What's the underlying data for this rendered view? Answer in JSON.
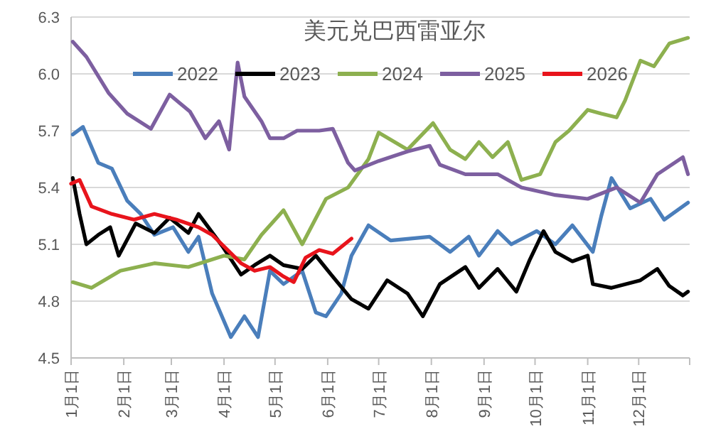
{
  "chart_data": {
    "type": "line",
    "title": "美元兑巴西雷亚尔",
    "legend": "top",
    "grid": "y",
    "marker": "none",
    "line_style": "solid",
    "xlim": [
      "--01-01",
      "--12-31"
    ],
    "xticks": [
      {
        "value": "--01-01",
        "label": "1月1日"
      },
      {
        "value": "--02-01",
        "label": "2月1日"
      },
      {
        "value": "--03-01",
        "label": "3月1日"
      },
      {
        "value": "--04-01",
        "label": "4月1日"
      },
      {
        "value": "--05-01",
        "label": "5月1日"
      },
      {
        "value": "--06-01",
        "label": "6月1日"
      },
      {
        "value": "--07-01",
        "label": "7月1日"
      },
      {
        "value": "--08-01",
        "label": "8月1日"
      },
      {
        "value": "--09-01",
        "label": "9月1日"
      },
      {
        "value": "--10-01",
        "label": "10月1日"
      },
      {
        "value": "--11-01",
        "label": "11月1日"
      },
      {
        "value": "--12-01",
        "label": "12月1日"
      }
    ],
    "ylim": [
      4.5,
      6.3
    ],
    "yticks": [
      {
        "value": 4.5,
        "label": "4.5"
      },
      {
        "value": 4.8,
        "label": "4.8"
      },
      {
        "value": 5.1,
        "label": "5.1"
      },
      {
        "value": 5.4,
        "label": "5.4"
      },
      {
        "value": 5.7,
        "label": "5.7"
      },
      {
        "value": 6.0,
        "label": "6.0"
      },
      {
        "value": 6.3,
        "label": "6.3"
      }
    ],
    "series": [
      {
        "name": "2022",
        "color": "#4a7ebb",
        "x": [
          "--01-02",
          "--01-08",
          "--01-17",
          "--01-25",
          "--02-03",
          "--02-11",
          "--02-19",
          "--03-02",
          "--03-11",
          "--03-17",
          "--03-25",
          "--04-05",
          "--04-13",
          "--04-21",
          "--04-28",
          "--05-06",
          "--05-17",
          "--05-25",
          "--05-31",
          "--06-09",
          "--06-15",
          "--06-25",
          "--07-08",
          "--07-31",
          "--08-12",
          "--08-23",
          "--08-29",
          "--09-09",
          "--09-17",
          "--10-02",
          "--10-13",
          "--10-23",
          "--11-04",
          "--11-09",
          "--11-15",
          "--11-26",
          "--12-08",
          "--12-16",
          "--12-30"
        ],
        "values": [
          5.68,
          5.72,
          5.53,
          5.5,
          5.33,
          5.26,
          5.15,
          5.19,
          5.06,
          5.14,
          4.84,
          4.61,
          4.72,
          4.61,
          4.96,
          4.89,
          4.96,
          4.74,
          4.72,
          4.84,
          5.04,
          5.2,
          5.12,
          5.14,
          5.06,
          5.14,
          5.04,
          5.17,
          5.1,
          5.17,
          5.1,
          5.2,
          5.06,
          5.25,
          5.45,
          5.29,
          5.34,
          5.23,
          5.32
        ]
      },
      {
        "name": "2023",
        "color": "#000000",
        "x": [
          "--01-02",
          "--01-06",
          "--01-10",
          "--01-17",
          "--01-24",
          "--01-29",
          "--02-08",
          "--02-19",
          "--02-28",
          "--03-11",
          "--03-17",
          "--03-31",
          "--04-11",
          "--04-19",
          "--04-28",
          "--05-06",
          "--05-17",
          "--05-25",
          "--06-03",
          "--06-15",
          "--06-25",
          "--07-06",
          "--07-18",
          "--07-27",
          "--08-06",
          "--08-21",
          "--08-29",
          "--09-09",
          "--09-20",
          "--09-28",
          "--10-06",
          "--10-13",
          "--10-23",
          "--11-01",
          "--11-04",
          "--11-15",
          "--12-02",
          "--12-12",
          "--12-19",
          "--12-27",
          "--12-30"
        ],
        "values": [
          5.45,
          5.26,
          5.1,
          5.15,
          5.19,
          5.04,
          5.21,
          5.16,
          5.24,
          5.16,
          5.26,
          5.09,
          4.94,
          4.99,
          5.04,
          4.99,
          4.97,
          5.04,
          4.94,
          4.81,
          4.76,
          4.91,
          4.84,
          4.72,
          4.89,
          4.98,
          4.87,
          4.97,
          4.85,
          5.02,
          5.17,
          5.06,
          5.01,
          5.04,
          4.89,
          4.87,
          4.91,
          4.97,
          4.88,
          4.83,
          4.85
        ]
      },
      {
        "name": "2024",
        "color": "#8db04f",
        "x": [
          "--01-02",
          "--01-13",
          "--01-30",
          "--02-19",
          "--03-11",
          "--04-01",
          "--04-13",
          "--04-23",
          "--05-06",
          "--05-17",
          "--05-31",
          "--06-13",
          "--06-25",
          "--07-01",
          "--07-18",
          "--08-02",
          "--08-12",
          "--08-21",
          "--08-29",
          "--09-06",
          "--09-15",
          "--09-23",
          "--10-04",
          "--10-13",
          "--10-21",
          "--11-01",
          "--11-09",
          "--11-18",
          "--11-23",
          "--12-02",
          "--12-10",
          "--12-19",
          "--12-30"
        ],
        "values": [
          4.9,
          4.87,
          4.96,
          5.0,
          4.98,
          5.04,
          5.02,
          5.15,
          5.28,
          5.1,
          5.34,
          5.4,
          5.55,
          5.69,
          5.6,
          5.74,
          5.6,
          5.55,
          5.64,
          5.56,
          5.64,
          5.44,
          5.47,
          5.64,
          5.7,
          5.81,
          5.79,
          5.77,
          5.86,
          6.07,
          6.04,
          6.16,
          6.19
        ]
      },
      {
        "name": "2025",
        "color": "#7d5fa0",
        "x": [
          "--01-02",
          "--01-10",
          "--01-23",
          "--02-03",
          "--02-17",
          "--02-28",
          "--03-12",
          "--03-21",
          "--03-29",
          "--04-04",
          "--04-09",
          "--04-13",
          "--04-23",
          "--04-28",
          "--05-06",
          "--05-14",
          "--05-27",
          "--06-04",
          "--06-13",
          "--06-17",
          "--07-01",
          "--07-18",
          "--07-31",
          "--08-06",
          "--08-21",
          "--09-09",
          "--09-23",
          "--10-13",
          "--11-01",
          "--11-18",
          "--12-02",
          "--12-12",
          "--12-27",
          "--12-30"
        ],
        "values": [
          6.17,
          6.09,
          5.9,
          5.79,
          5.71,
          5.89,
          5.8,
          5.66,
          5.75,
          5.6,
          6.06,
          5.88,
          5.75,
          5.66,
          5.66,
          5.7,
          5.7,
          5.71,
          5.53,
          5.49,
          5.54,
          5.59,
          5.62,
          5.52,
          5.47,
          5.47,
          5.4,
          5.36,
          5.34,
          5.4,
          5.32,
          5.47,
          5.56,
          5.47
        ]
      },
      {
        "name": "2026",
        "color": "#e8141c",
        "x": [
          "--01-01",
          "--01-06",
          "--01-13",
          "--01-25",
          "--02-07",
          "--02-19",
          "--03-04",
          "--03-17",
          "--03-25",
          "--04-02",
          "--04-11",
          "--04-19",
          "--04-28",
          "--05-06",
          "--05-12",
          "--05-19",
          "--05-27",
          "--06-04",
          "--06-15"
        ],
        "values": [
          5.42,
          5.44,
          5.3,
          5.26,
          5.23,
          5.26,
          5.23,
          5.19,
          5.15,
          5.08,
          5.0,
          4.96,
          4.98,
          4.93,
          4.9,
          5.03,
          5.07,
          5.05,
          5.13
        ]
      }
    ]
  }
}
